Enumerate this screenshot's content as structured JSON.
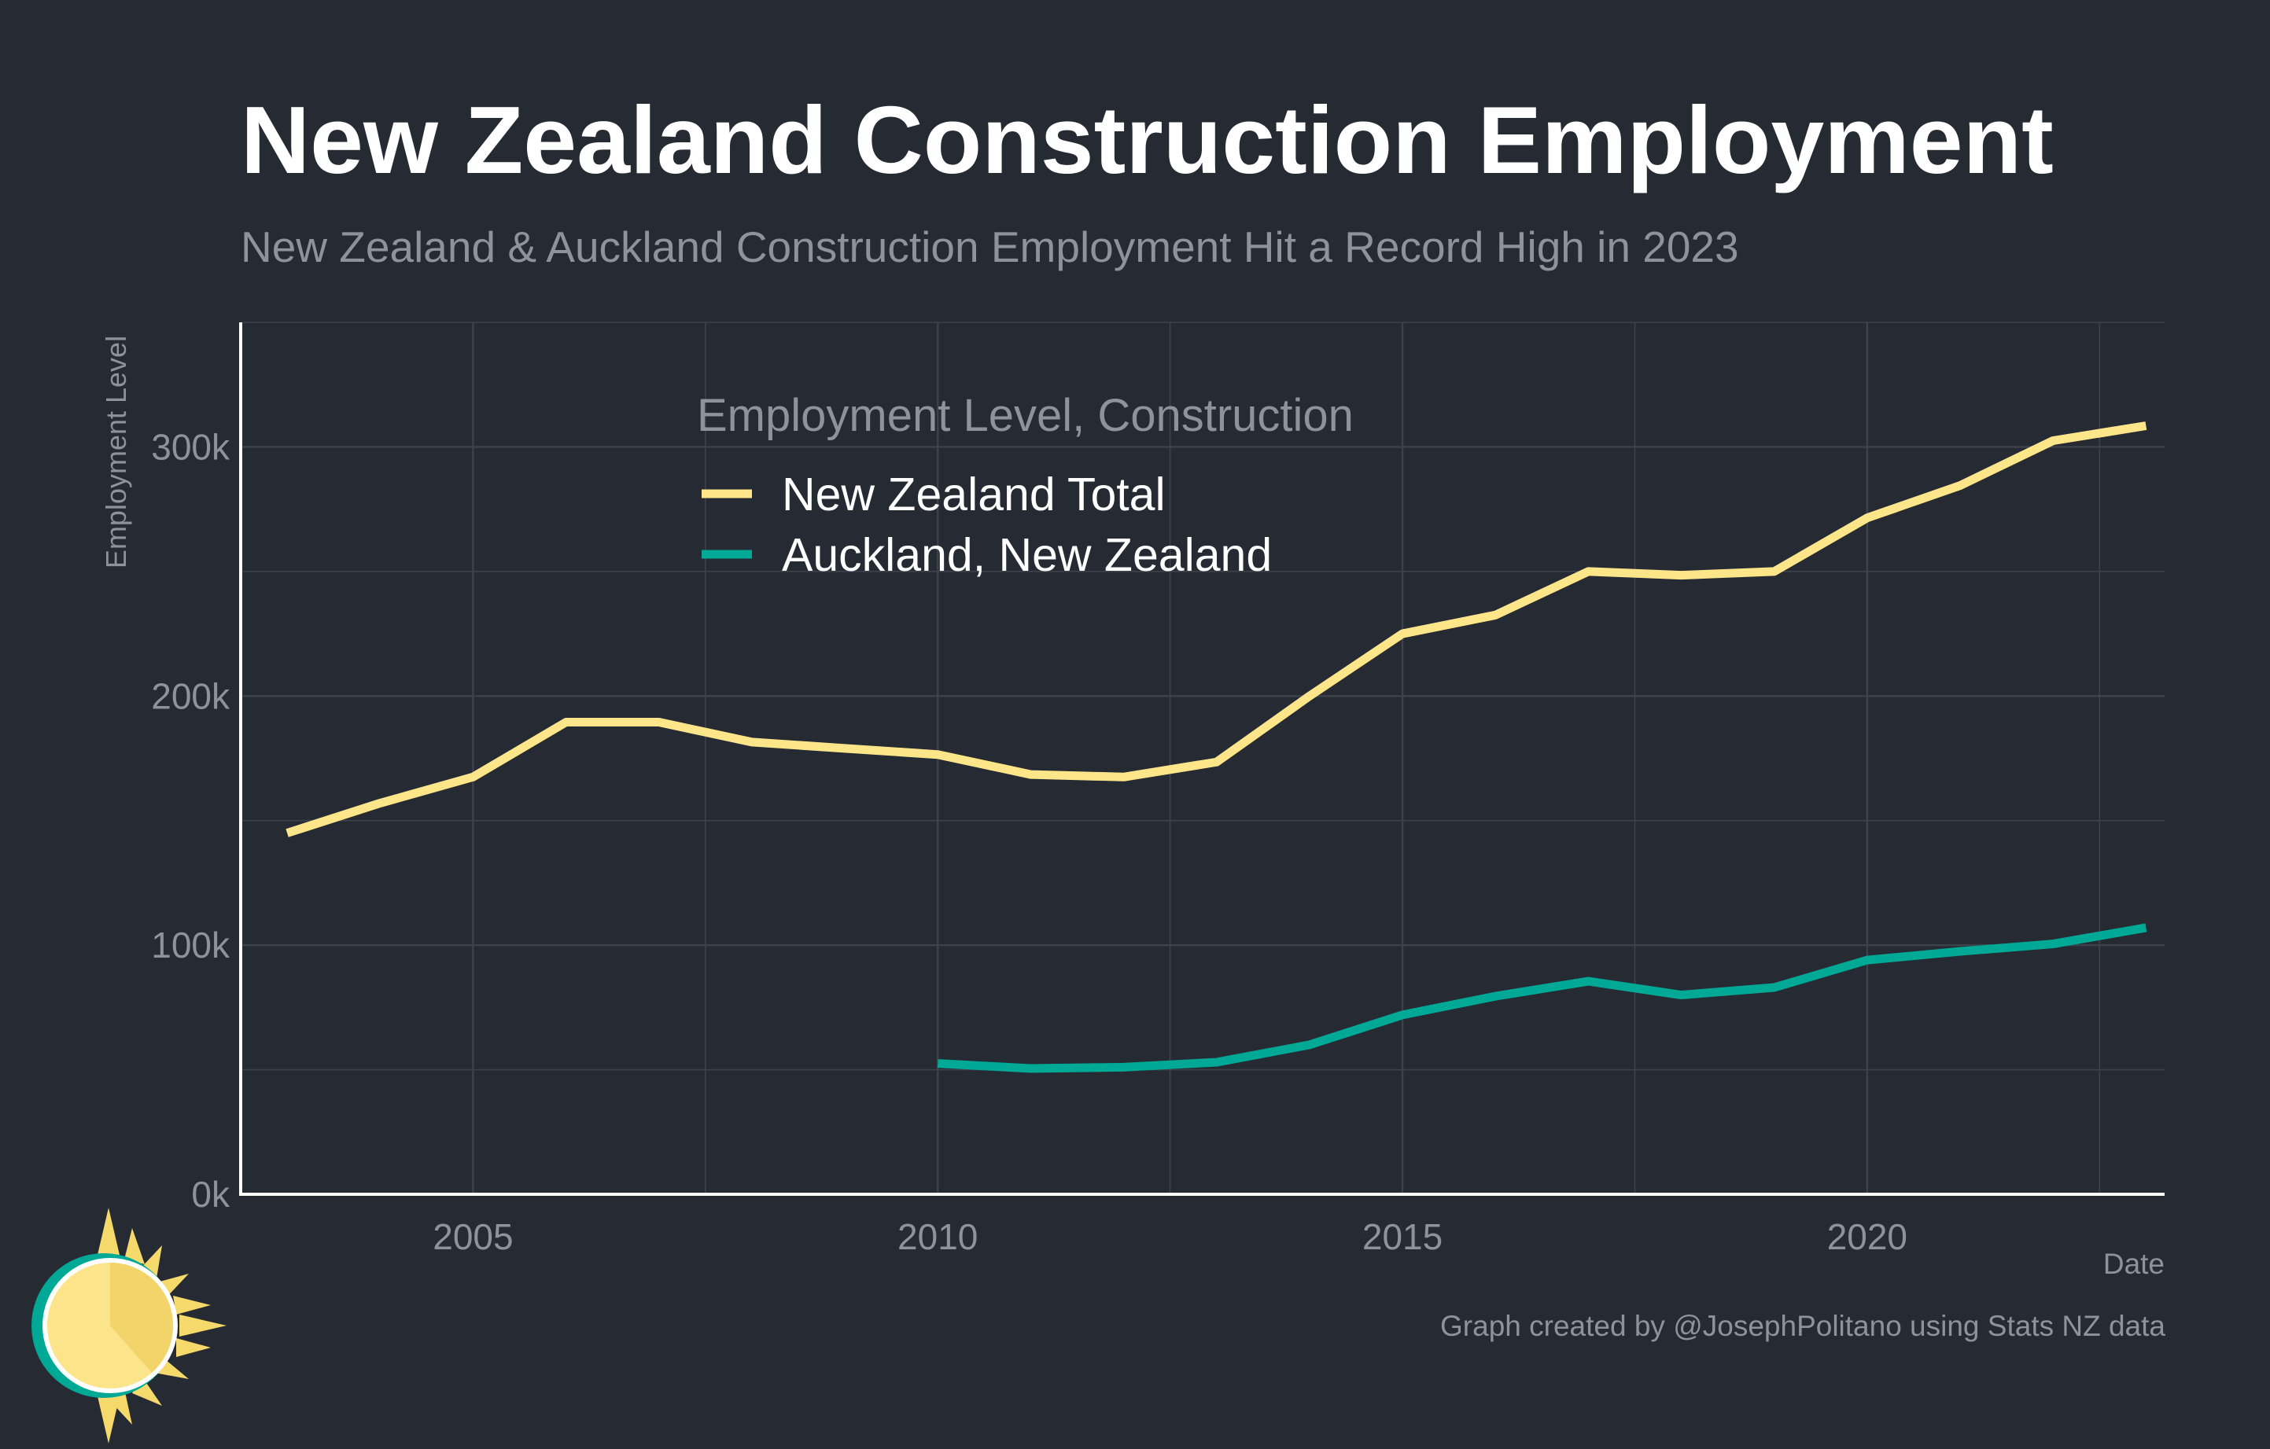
{
  "header": {
    "title": "New Zealand Construction Employment",
    "subtitle": "New Zealand & Auckland Construction Employment Hit a Record High in 2023"
  },
  "footer": {
    "caption": "Graph created by @JosephPolitano using Stats NZ data"
  },
  "colors": {
    "background": "#252a33",
    "nz_total": "#fde68a",
    "auckland": "#00a896",
    "grid": "#3d424b",
    "axis_text": "#8e939b"
  },
  "chart_data": {
    "type": "line",
    "xlabel": "Date",
    "ylabel": "Employment Level",
    "xlim": [
      2002.5,
      2023.2
    ],
    "ylim": [
      0,
      350000
    ],
    "x_ticks": [
      2005,
      2010,
      2015,
      2020
    ],
    "x_tick_labels": [
      "2005",
      "2010",
      "2015",
      "2020"
    ],
    "y_ticks": [
      0,
      100000,
      200000,
      300000
    ],
    "y_tick_labels": [
      "0k",
      "100k",
      "200k",
      "300k"
    ],
    "grid": true,
    "legend": {
      "title": "Employment Level, Construction",
      "placement": "top-center"
    },
    "series": [
      {
        "name": "New Zealand Total",
        "color": "#fde68a",
        "x": [
          2003,
          2004,
          2005,
          2006,
          2007,
          2008,
          2009,
          2010,
          2011,
          2012,
          2013,
          2014,
          2015,
          2016,
          2017,
          2018,
          2019,
          2020,
          2021,
          2022,
          2023
        ],
        "values": [
          145000,
          157000,
          167500,
          189500,
          189500,
          181500,
          179000,
          176500,
          168500,
          167500,
          173500,
          200000,
          225000,
          232500,
          250000,
          248500,
          250000,
          271500,
          284500,
          302500,
          308500
        ]
      },
      {
        "name": "Auckland, New Zealand",
        "color": "#00a896",
        "x": [
          2010,
          2011,
          2012,
          2013,
          2014,
          2015,
          2016,
          2017,
          2018,
          2019,
          2020,
          2021,
          2022,
          2023
        ],
        "values": [
          52500,
          50500,
          51000,
          53000,
          60000,
          72000,
          79500,
          85500,
          80000,
          83000,
          94000,
          97500,
          100500,
          107000
        ]
      }
    ]
  }
}
